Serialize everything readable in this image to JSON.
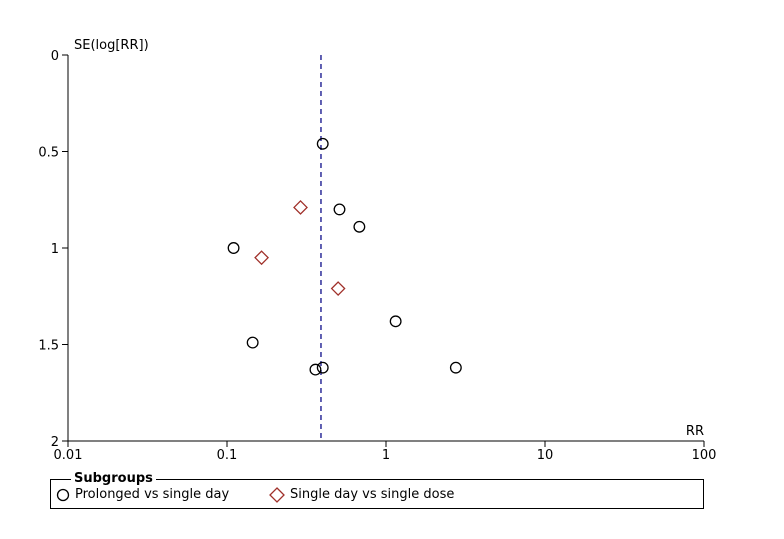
{
  "chart_data": {
    "type": "scatter",
    "title": "",
    "xlabel": "RR",
    "ylabel": "SE(log[RR])",
    "x_scale": "log",
    "xlim": [
      0.01,
      100
    ],
    "x_ticks": [
      0.01,
      0.1,
      1,
      10,
      100
    ],
    "x_tick_labels": [
      "0.01",
      "0.1",
      "1",
      "10",
      "100"
    ],
    "ylim": [
      0,
      2
    ],
    "y_inverted": true,
    "y_ticks": [
      0,
      0.5,
      1,
      1.5,
      2
    ],
    "y_tick_labels": [
      "0",
      "0.5",
      "1",
      "1.5",
      "2"
    ],
    "reference_line": {
      "x": 0.39,
      "style": "dashed",
      "color": "#3a3aa0"
    },
    "series": [
      {
        "name": "Prolonged vs single day",
        "marker": "circle",
        "color": "#000000",
        "points": [
          {
            "x": 0.4,
            "y": 0.46
          },
          {
            "x": 0.51,
            "y": 0.8
          },
          {
            "x": 0.68,
            "y": 0.89
          },
          {
            "x": 0.11,
            "y": 1.0
          },
          {
            "x": 1.15,
            "y": 1.38
          },
          {
            "x": 0.145,
            "y": 1.49
          },
          {
            "x": 0.36,
            "y": 1.63
          },
          {
            "x": 0.4,
            "y": 1.62
          },
          {
            "x": 2.75,
            "y": 1.62
          }
        ]
      },
      {
        "name": "Single day vs single dose",
        "marker": "diamond",
        "color": "#a0302a",
        "points": [
          {
            "x": 0.29,
            "y": 0.79
          },
          {
            "x": 0.165,
            "y": 1.05
          },
          {
            "x": 0.5,
            "y": 1.21
          }
        ]
      }
    ]
  },
  "legend": {
    "title": "Subgroups",
    "items": [
      {
        "label": "Prolonged vs single day",
        "icon": "circle-marker-icon"
      },
      {
        "label": "Single day vs single dose",
        "icon": "diamond-marker-icon"
      }
    ]
  }
}
